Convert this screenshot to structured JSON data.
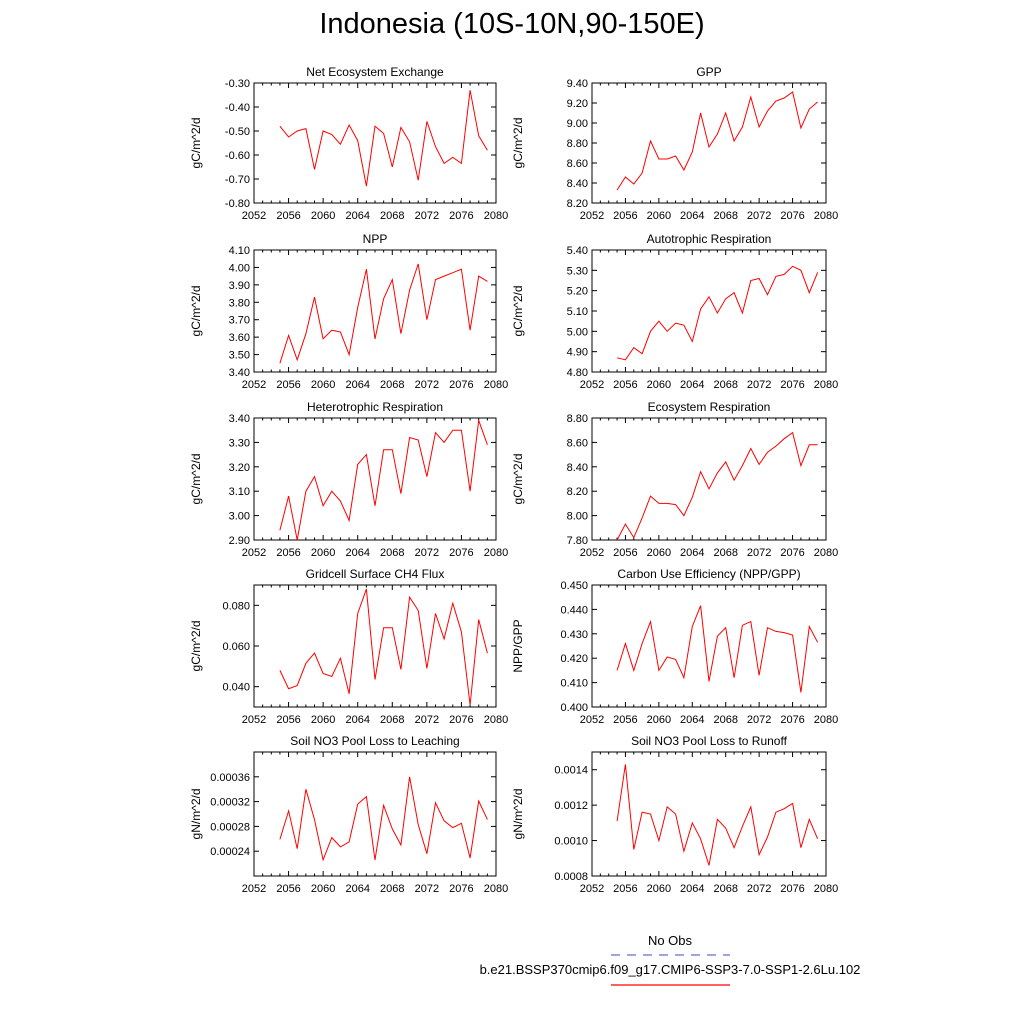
{
  "title": "Indonesia (10S-10N,90-150E)",
  "colors": {
    "model_line": "#ff0000",
    "obs_line": "#6b6bd6",
    "axis": "#000000"
  },
  "legend": {
    "obs_label": "No Obs",
    "model_label": "b.e21.BSSP370cmip6.f09_g17.CMIP6-SSP3-7.0-SSP1-2.6Lu.102"
  },
  "chart_data": [
    {
      "type": "line",
      "title": "Net Ecosystem Exchange",
      "ylabel": "gC/m^2/d",
      "xlim": [
        2052,
        2080
      ],
      "xticks": [
        2052,
        2056,
        2060,
        2064,
        2068,
        2072,
        2076,
        2080
      ],
      "ylim": [
        -0.8,
        -0.3
      ],
      "yticks": [
        -0.8,
        -0.7,
        -0.6,
        -0.5,
        -0.4,
        -0.3
      ],
      "ytick_labels": [
        "-0.80",
        "-0.70",
        "-0.60",
        "-0.50",
        "-0.40",
        "-0.30"
      ],
      "x": [
        2055,
        2056,
        2057,
        2058,
        2059,
        2060,
        2061,
        2062,
        2063,
        2064,
        2065,
        2066,
        2067,
        2068,
        2069,
        2070,
        2071,
        2072,
        2073,
        2074,
        2075,
        2076,
        2077,
        2078,
        2079
      ],
      "values": [
        -0.48,
        -0.525,
        -0.5,
        -0.49,
        -0.66,
        -0.5,
        -0.515,
        -0.555,
        -0.475,
        -0.54,
        -0.73,
        -0.48,
        -0.51,
        -0.65,
        -0.485,
        -0.545,
        -0.705,
        -0.46,
        -0.565,
        -0.635,
        -0.61,
        -0.635,
        -0.33,
        -0.52,
        -0.58
      ]
    },
    {
      "type": "line",
      "title": "GPP",
      "ylabel": "gC/m^2/d",
      "xlim": [
        2052,
        2080
      ],
      "xticks": [
        2052,
        2056,
        2060,
        2064,
        2068,
        2072,
        2076,
        2080
      ],
      "ylim": [
        8.2,
        9.4
      ],
      "yticks": [
        8.2,
        8.4,
        8.6,
        8.8,
        9.0,
        9.2,
        9.4
      ],
      "ytick_labels": [
        "8.20",
        "8.40",
        "8.60",
        "8.80",
        "9.00",
        "9.20",
        "9.40"
      ],
      "x": [
        2055,
        2056,
        2057,
        2058,
        2059,
        2060,
        2061,
        2062,
        2063,
        2064,
        2065,
        2066,
        2067,
        2068,
        2069,
        2070,
        2071,
        2072,
        2073,
        2074,
        2075,
        2076,
        2077,
        2078,
        2079
      ],
      "values": [
        8.33,
        8.46,
        8.39,
        8.5,
        8.82,
        8.64,
        8.64,
        8.67,
        8.53,
        8.71,
        9.1,
        8.76,
        8.89,
        9.1,
        8.82,
        8.96,
        9.26,
        8.96,
        9.12,
        9.22,
        9.25,
        9.31,
        8.95,
        9.14,
        9.21
      ]
    },
    {
      "type": "line",
      "title": "NPP",
      "ylabel": "gC/m^2/d",
      "xlim": [
        2052,
        2080
      ],
      "xticks": [
        2052,
        2056,
        2060,
        2064,
        2068,
        2072,
        2076,
        2080
      ],
      "ylim": [
        3.4,
        4.1
      ],
      "yticks": [
        3.4,
        3.5,
        3.6,
        3.7,
        3.8,
        3.9,
        4.0,
        4.1
      ],
      "ytick_labels": [
        "3.40",
        "3.50",
        "3.60",
        "3.70",
        "3.80",
        "3.90",
        "4.00",
        "4.10"
      ],
      "x": [
        2055,
        2056,
        2057,
        2058,
        2059,
        2060,
        2061,
        2062,
        2063,
        2064,
        2065,
        2066,
        2067,
        2068,
        2069,
        2070,
        2071,
        2072,
        2073,
        2074,
        2075,
        2076,
        2077,
        2078,
        2079
      ],
      "values": [
        3.45,
        3.61,
        3.47,
        3.62,
        3.83,
        3.59,
        3.64,
        3.63,
        3.5,
        3.77,
        3.99,
        3.59,
        3.82,
        3.93,
        3.62,
        3.87,
        4.02,
        3.7,
        3.93,
        3.95,
        3.97,
        3.99,
        3.64,
        3.95,
        3.92
      ]
    },
    {
      "type": "line",
      "title": "Autotrophic Respiration",
      "ylabel": "gC/m^2/d",
      "xlim": [
        2052,
        2080
      ],
      "xticks": [
        2052,
        2056,
        2060,
        2064,
        2068,
        2072,
        2076,
        2080
      ],
      "ylim": [
        4.8,
        5.4
      ],
      "yticks": [
        4.8,
        4.9,
        5.0,
        5.1,
        5.2,
        5.3,
        5.4
      ],
      "ytick_labels": [
        "4.80",
        "4.90",
        "5.00",
        "5.10",
        "5.20",
        "5.30",
        "5.40"
      ],
      "x": [
        2055,
        2056,
        2057,
        2058,
        2059,
        2060,
        2061,
        2062,
        2063,
        2064,
        2065,
        2066,
        2067,
        2068,
        2069,
        2070,
        2071,
        2072,
        2073,
        2074,
        2075,
        2076,
        2077,
        2078,
        2079
      ],
      "values": [
        4.87,
        4.86,
        4.92,
        4.89,
        5.0,
        5.05,
        5.0,
        5.04,
        5.03,
        4.95,
        5.11,
        5.17,
        5.09,
        5.16,
        5.19,
        5.09,
        5.25,
        5.26,
        5.18,
        5.27,
        5.28,
        5.32,
        5.3,
        5.19,
        5.29
      ]
    },
    {
      "type": "line",
      "title": "Heterotrophic Respiration",
      "ylabel": "gC/m^2/d",
      "xlim": [
        2052,
        2080
      ],
      "xticks": [
        2052,
        2056,
        2060,
        2064,
        2068,
        2072,
        2076,
        2080
      ],
      "ylim": [
        2.9,
        3.4
      ],
      "yticks": [
        2.9,
        3.0,
        3.1,
        3.2,
        3.3,
        3.4
      ],
      "ytick_labels": [
        "2.90",
        "3.00",
        "3.10",
        "3.20",
        "3.30",
        "3.40"
      ],
      "x": [
        2055,
        2056,
        2057,
        2058,
        2059,
        2060,
        2061,
        2062,
        2063,
        2064,
        2065,
        2066,
        2067,
        2068,
        2069,
        2070,
        2071,
        2072,
        2073,
        2074,
        2075,
        2076,
        2077,
        2078,
        2079
      ],
      "values": [
        2.94,
        3.08,
        2.9,
        3.1,
        3.16,
        3.04,
        3.1,
        3.06,
        2.98,
        3.21,
        3.25,
        3.04,
        3.27,
        3.27,
        3.09,
        3.32,
        3.31,
        3.16,
        3.34,
        3.3,
        3.35,
        3.35,
        3.1,
        3.39,
        3.29
      ]
    },
    {
      "type": "line",
      "title": "Ecosystem Respiration",
      "ylabel": "gC/m^2/d",
      "xlim": [
        2052,
        2080
      ],
      "xticks": [
        2052,
        2056,
        2060,
        2064,
        2068,
        2072,
        2076,
        2080
      ],
      "ylim": [
        7.8,
        8.8
      ],
      "yticks": [
        7.8,
        8.0,
        8.2,
        8.4,
        8.6,
        8.8
      ],
      "ytick_labels": [
        "7.80",
        "8.00",
        "8.20",
        "8.40",
        "8.60",
        "8.80"
      ],
      "x": [
        2055,
        2056,
        2057,
        2058,
        2059,
        2060,
        2061,
        2062,
        2063,
        2064,
        2065,
        2066,
        2067,
        2068,
        2069,
        2070,
        2071,
        2072,
        2073,
        2074,
        2075,
        2076,
        2077,
        2078,
        2079
      ],
      "values": [
        7.8,
        7.93,
        7.82,
        7.98,
        8.16,
        8.1,
        8.1,
        8.09,
        8.0,
        8.15,
        8.36,
        8.22,
        8.35,
        8.44,
        8.29,
        8.41,
        8.55,
        8.42,
        8.52,
        8.57,
        8.63,
        8.68,
        8.41,
        8.58,
        8.58
      ]
    },
    {
      "type": "line",
      "title": "Gridcell Surface CH4 Flux",
      "ylabel": "gC/m^2/d",
      "xlim": [
        2052,
        2080
      ],
      "xticks": [
        2052,
        2056,
        2060,
        2064,
        2068,
        2072,
        2076,
        2080
      ],
      "ylim": [
        0.03,
        0.09
      ],
      "yticks": [
        0.04,
        0.06,
        0.08
      ],
      "ytick_labels": [
        "0.040",
        "0.060",
        "0.080"
      ],
      "x": [
        2055,
        2056,
        2057,
        2058,
        2059,
        2060,
        2061,
        2062,
        2063,
        2064,
        2065,
        2066,
        2067,
        2068,
        2069,
        2070,
        2071,
        2072,
        2073,
        2074,
        2075,
        2076,
        2077,
        2078,
        2079
      ],
      "values": [
        0.048,
        0.039,
        0.0405,
        0.0515,
        0.0565,
        0.0465,
        0.045,
        0.054,
        0.0365,
        0.076,
        0.088,
        0.0435,
        0.069,
        0.069,
        0.0485,
        0.084,
        0.0775,
        0.049,
        0.076,
        0.0635,
        0.081,
        0.067,
        0.031,
        0.073,
        0.0565
      ]
    },
    {
      "type": "line",
      "title": "Carbon Use Efficiency (NPP/GPP)",
      "ylabel": "NPP/GPP",
      "xlim": [
        2052,
        2080
      ],
      "xticks": [
        2052,
        2056,
        2060,
        2064,
        2068,
        2072,
        2076,
        2080
      ],
      "ylim": [
        0.4,
        0.45
      ],
      "yticks": [
        0.4,
        0.41,
        0.42,
        0.43,
        0.44,
        0.45
      ],
      "ytick_labels": [
        "0.400",
        "0.410",
        "0.420",
        "0.430",
        "0.440",
        "0.450"
      ],
      "x": [
        2055,
        2056,
        2057,
        2058,
        2059,
        2060,
        2061,
        2062,
        2063,
        2064,
        2065,
        2066,
        2067,
        2068,
        2069,
        2070,
        2071,
        2072,
        2073,
        2074,
        2075,
        2076,
        2077,
        2078,
        2079
      ],
      "values": [
        0.415,
        0.426,
        0.415,
        0.426,
        0.435,
        0.415,
        0.4205,
        0.4195,
        0.412,
        0.433,
        0.4415,
        0.4105,
        0.429,
        0.4325,
        0.412,
        0.4335,
        0.435,
        0.413,
        0.4325,
        0.431,
        0.4305,
        0.4295,
        0.406,
        0.433,
        0.4265
      ]
    },
    {
      "type": "line",
      "title": "Soil NO3 Pool Loss to Leaching",
      "ylabel": "gN/m^2/d",
      "xlim": [
        2052,
        2080
      ],
      "xticks": [
        2052,
        2056,
        2060,
        2064,
        2068,
        2072,
        2076,
        2080
      ],
      "ylim": [
        0.0002,
        0.0004
      ],
      "yticks": [
        0.00024,
        0.00028,
        0.00032,
        0.00036
      ],
      "ytick_labels": [
        "0.00024",
        "0.00028",
        "0.00032",
        "0.00036"
      ],
      "x": [
        2055,
        2056,
        2057,
        2058,
        2059,
        2060,
        2061,
        2062,
        2063,
        2064,
        2065,
        2066,
        2067,
        2068,
        2069,
        2070,
        2071,
        2072,
        2073,
        2074,
        2075,
        2076,
        2077,
        2078,
        2079
      ],
      "values": [
        0.000259,
        0.000305,
        0.000244,
        0.00034,
        0.000291,
        0.000226,
        0.000262,
        0.000247,
        0.000255,
        0.000316,
        0.000328,
        0.000226,
        0.000314,
        0.000276,
        0.00025,
        0.00036,
        0.000283,
        0.000236,
        0.000318,
        0.000289,
        0.000278,
        0.000285,
        0.000229,
        0.000321,
        0.000291
      ]
    },
    {
      "type": "line",
      "title": "Soil NO3 Pool Loss to Runoff",
      "ylabel": "gN/m^2/d",
      "xlim": [
        2052,
        2080
      ],
      "xticks": [
        2052,
        2056,
        2060,
        2064,
        2068,
        2072,
        2076,
        2080
      ],
      "ylim": [
        0.0008,
        0.0015
      ],
      "yticks": [
        0.0008,
        0.001,
        0.0012,
        0.0014
      ],
      "ytick_labels": [
        "0.0008",
        "0.0010",
        "0.0012",
        "0.0014"
      ],
      "x": [
        2055,
        2056,
        2057,
        2058,
        2059,
        2060,
        2061,
        2062,
        2063,
        2064,
        2065,
        2066,
        2067,
        2068,
        2069,
        2070,
        2071,
        2072,
        2073,
        2074,
        2075,
        2076,
        2077,
        2078,
        2079
      ],
      "values": [
        0.00111,
        0.00143,
        0.00095,
        0.00116,
        0.00115,
        0.001,
        0.00119,
        0.00115,
        0.00094,
        0.0011,
        0.00101,
        0.00086,
        0.00112,
        0.00107,
        0.00096,
        0.00108,
        0.00119,
        0.00092,
        0.00102,
        0.00116,
        0.00118,
        0.00121,
        0.00096,
        0.00112,
        0.00101
      ]
    }
  ]
}
